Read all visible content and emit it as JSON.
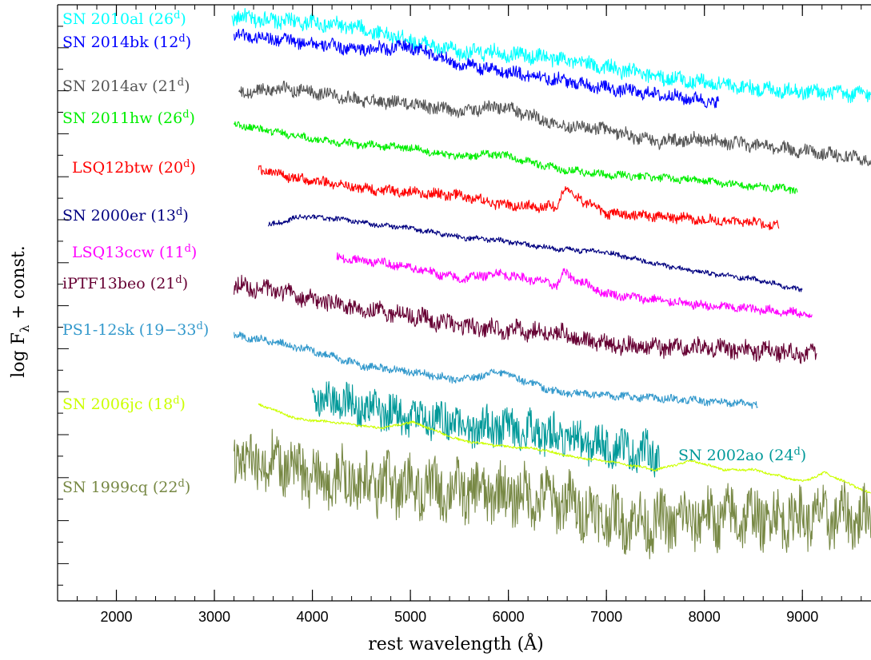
{
  "chart_data": {
    "type": "line",
    "xlabel": "rest wavelength (Å)",
    "ylabel": "log Fλ + const.",
    "xlim": [
      1400,
      9700
    ],
    "x_ticks": [
      2000,
      3000,
      4000,
      5000,
      6000,
      7000,
      8000,
      9000
    ],
    "x_minor_step": 200,
    "grid": false,
    "y_offset_units": "arbitrary",
    "series": [
      {
        "name": "SN 2010al",
        "phase": "26",
        "color": "#00ffff",
        "noise": 0.012,
        "x": [
          3180,
          3500,
          4000,
          4500,
          5000,
          5500,
          5900,
          6500,
          7000,
          7500,
          8000,
          8500,
          9000,
          9500,
          9700
        ],
        "y": [
          0.98,
          0.975,
          0.97,
          0.96,
          0.94,
          0.92,
          0.92,
          0.91,
          0.895,
          0.88,
          0.87,
          0.86,
          0.855,
          0.85,
          0.85
        ]
      },
      {
        "name": "SN 2014bk",
        "phase": "12",
        "color": "#0000ff",
        "noise": 0.01,
        "x": [
          3200,
          3500,
          4000,
          4500,
          5000,
          5500,
          5900,
          6500,
          7000,
          7500,
          8000,
          8150
        ],
        "y": [
          0.95,
          0.945,
          0.935,
          0.925,
          0.93,
          0.9,
          0.89,
          0.875,
          0.86,
          0.85,
          0.84,
          0.835
        ]
      },
      {
        "name": "SN 2014av",
        "phase": "21",
        "color": "#555555",
        "noise": 0.01,
        "x": [
          3250,
          3600,
          4000,
          4500,
          5000,
          5500,
          5900,
          6500,
          7000,
          7500,
          7900,
          8500,
          9000,
          9500,
          9700
        ],
        "y": [
          0.85,
          0.86,
          0.855,
          0.84,
          0.835,
          0.82,
          0.83,
          0.8,
          0.79,
          0.77,
          0.775,
          0.765,
          0.755,
          0.745,
          0.74
        ]
      },
      {
        "name": "SN 2011hw",
        "phase": "26",
        "color": "#00ee00",
        "noise": 0.006,
        "x": [
          3200,
          3500,
          4000,
          4500,
          5000,
          5500,
          5900,
          6500,
          7000,
          7500,
          8000,
          8500,
          8950
        ],
        "y": [
          0.8,
          0.79,
          0.775,
          0.765,
          0.76,
          0.745,
          0.75,
          0.725,
          0.715,
          0.71,
          0.705,
          0.695,
          0.69
        ]
      },
      {
        "name": "LSQ12btw",
        "phase": "20",
        "color": "#ff0000",
        "noise": 0.008,
        "x": [
          3450,
          3800,
          4200,
          4600,
          5000,
          5500,
          5900,
          6500,
          6560,
          7000,
          7500,
          8000,
          8500,
          8760
        ],
        "y": [
          0.725,
          0.71,
          0.7,
          0.69,
          0.685,
          0.68,
          0.665,
          0.66,
          0.69,
          0.65,
          0.645,
          0.64,
          0.635,
          0.63
        ]
      },
      {
        "name": "SN 2000er",
        "phase": "13",
        "color": "#000080",
        "noise": 0.004,
        "x": [
          3550,
          3900,
          4300,
          4700,
          5000,
          5500,
          5900,
          6500,
          7000,
          7500,
          8000,
          8500,
          9000
        ],
        "y": [
          0.63,
          0.645,
          0.64,
          0.63,
          0.625,
          0.61,
          0.605,
          0.59,
          0.585,
          0.565,
          0.55,
          0.54,
          0.52
        ]
      },
      {
        "name": "LSQ13ccw",
        "phase": "11",
        "color": "#ff00ff",
        "noise": 0.007,
        "x": [
          4250,
          4600,
          5000,
          5500,
          5900,
          6500,
          6560,
          7000,
          7500,
          8000,
          8500,
          9100
        ],
        "y": [
          0.575,
          0.57,
          0.56,
          0.54,
          0.55,
          0.53,
          0.55,
          0.515,
          0.505,
          0.495,
          0.49,
          0.48
        ]
      },
      {
        "name": "iPTF13beo",
        "phase": "21",
        "color": "#660033",
        "noise": 0.014,
        "x": [
          3200,
          3600,
          4000,
          4500,
          5000,
          5500,
          6000,
          6500,
          7000,
          7500,
          8000,
          8500,
          9150
        ],
        "y": [
          0.53,
          0.52,
          0.505,
          0.49,
          0.48,
          0.46,
          0.455,
          0.45,
          0.43,
          0.425,
          0.425,
          0.42,
          0.415
        ]
      },
      {
        "name": "PS1-12sk",
        "phase": "19−33",
        "color": "#3399cc",
        "noise": 0.006,
        "x": [
          3200,
          3600,
          4000,
          4500,
          5000,
          5500,
          5900,
          6500,
          7000,
          7500,
          8000,
          8550
        ],
        "y": [
          0.445,
          0.435,
          0.42,
          0.395,
          0.385,
          0.37,
          0.385,
          0.35,
          0.345,
          0.34,
          0.335,
          0.33
        ]
      },
      {
        "name": "SN 2002ao",
        "phase": "24",
        "color": "#009999",
        "noise": 0.03,
        "x": [
          4000,
          4400,
          4800,
          5200,
          5600,
          6000,
          6400,
          6800,
          7200,
          7540
        ],
        "y": [
          0.345,
          0.33,
          0.315,
          0.305,
          0.295,
          0.29,
          0.28,
          0.265,
          0.255,
          0.245
        ]
      },
      {
        "name": "SN 2006jc",
        "phase": "18",
        "color": "#ccff00",
        "noise": 0.002,
        "x": [
          3450,
          3850,
          4200,
          4700,
          5030,
          5500,
          5900,
          6300,
          6700,
          7000,
          7500,
          7880,
          8200,
          8500,
          9000,
          9230,
          9700
        ],
        "y": [
          0.33,
          0.305,
          0.3,
          0.29,
          0.3,
          0.27,
          0.26,
          0.255,
          0.24,
          0.235,
          0.22,
          0.235,
          0.22,
          0.22,
          0.2,
          0.215,
          0.18
        ]
      },
      {
        "name": "SN 1999cq",
        "phase": "22",
        "color": "#778844",
        "noise": 0.045,
        "x": [
          3200,
          3600,
          4000,
          4500,
          5000,
          5500,
          5900,
          6500,
          7000,
          7500,
          8000,
          8500,
          9000,
          9700
        ],
        "y": [
          0.24,
          0.23,
          0.21,
          0.2,
          0.19,
          0.185,
          0.18,
          0.17,
          0.14,
          0.13,
          0.14,
          0.14,
          0.14,
          0.14
        ]
      }
    ]
  }
}
